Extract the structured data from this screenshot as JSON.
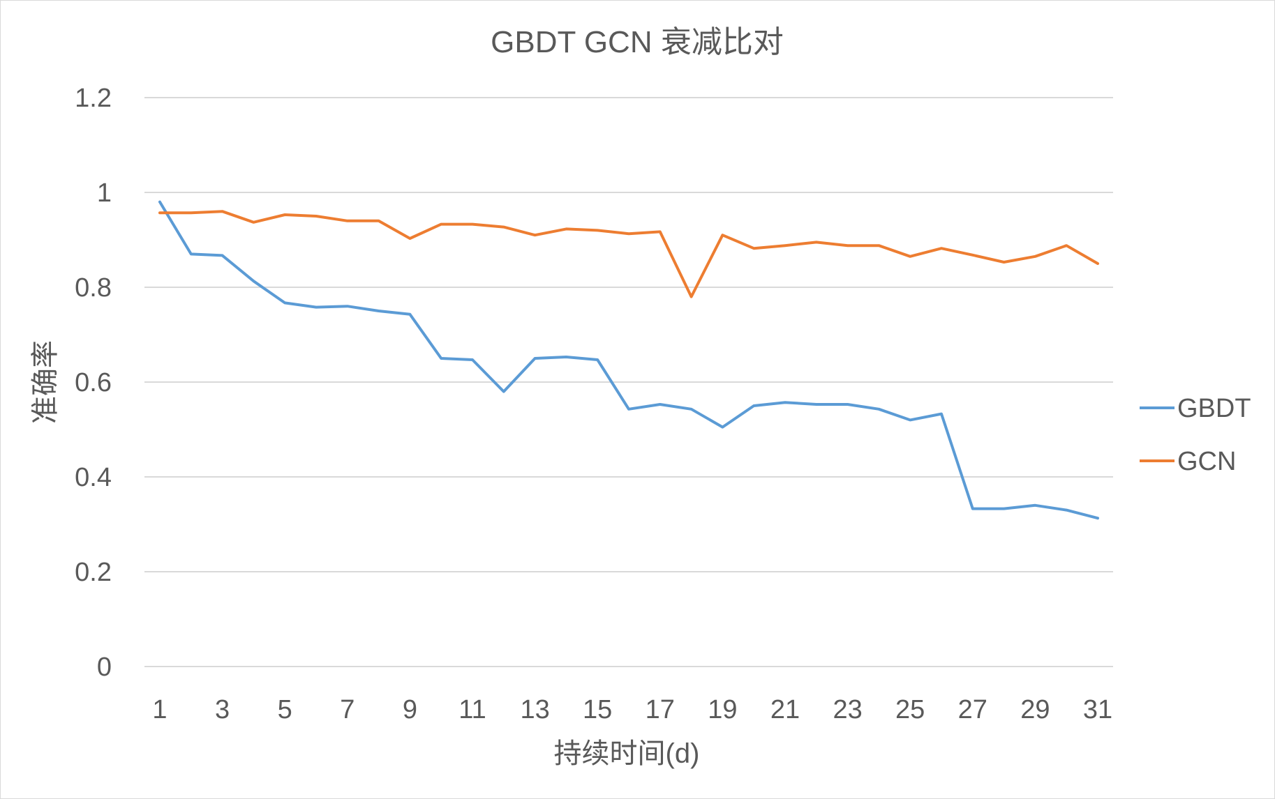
{
  "chart_data": {
    "type": "line",
    "title": "GBDT GCN 衰减比对",
    "xlabel": "持续时间(d)",
    "ylabel": "准确率",
    "ylim": [
      0,
      1.2
    ],
    "yticks": [
      "0",
      "0.2",
      "0.4",
      "0.6",
      "0.8",
      "1",
      "1.2"
    ],
    "ytick_values": [
      0,
      0.2,
      0.4,
      0.6,
      0.8,
      1.0,
      1.2
    ],
    "x": [
      1,
      2,
      3,
      4,
      5,
      6,
      7,
      8,
      9,
      10,
      11,
      12,
      13,
      14,
      15,
      16,
      17,
      18,
      19,
      20,
      21,
      22,
      23,
      24,
      25,
      26,
      27,
      28,
      29,
      30,
      31
    ],
    "xtick_labels": [
      "1",
      "3",
      "5",
      "7",
      "9",
      "11",
      "13",
      "15",
      "17",
      "19",
      "21",
      "23",
      "25",
      "27",
      "29",
      "31"
    ],
    "xtick_values": [
      1,
      3,
      5,
      7,
      9,
      11,
      13,
      15,
      17,
      19,
      21,
      23,
      25,
      27,
      29,
      31
    ],
    "grid": true,
    "legend_position": "right",
    "series": [
      {
        "name": "GBDT",
        "color": "#5b9bd5",
        "values": [
          0.98,
          0.87,
          0.867,
          0.813,
          0.767,
          0.758,
          0.76,
          0.75,
          0.743,
          0.65,
          0.647,
          0.58,
          0.65,
          0.653,
          0.647,
          0.543,
          0.553,
          0.543,
          0.505,
          0.55,
          0.557,
          0.553,
          0.553,
          0.543,
          0.52,
          0.533,
          0.333,
          0.333,
          0.34,
          0.33,
          0.313
        ]
      },
      {
        "name": "GCN",
        "color": "#ed7d31",
        "values": [
          0.957,
          0.957,
          0.96,
          0.937,
          0.953,
          0.95,
          0.94,
          0.94,
          0.903,
          0.933,
          0.933,
          0.927,
          0.91,
          0.923,
          0.92,
          0.913,
          0.917,
          0.78,
          0.91,
          0.882,
          0.888,
          0.895,
          0.888,
          0.888,
          0.865,
          0.882,
          0.868,
          0.853,
          0.865,
          0.888,
          0.85
        ]
      }
    ]
  }
}
